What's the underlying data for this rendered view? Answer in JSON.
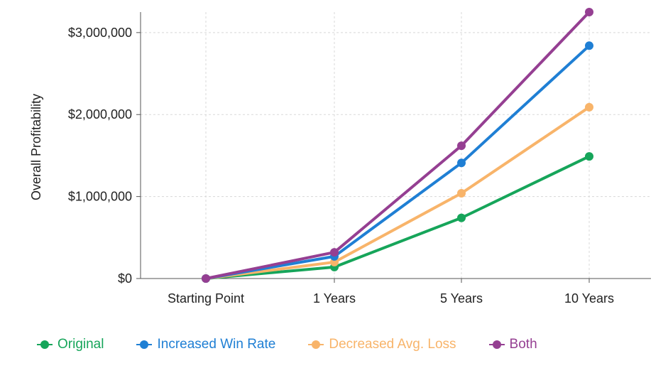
{
  "chart_data": {
    "type": "line",
    "categories": [
      "Starting Point",
      "1 Years",
      "5 Years",
      "10 Years"
    ],
    "ylabel": "Overall Profitability",
    "xlabel": "",
    "ylim": [
      0,
      3250000
    ],
    "yticks": [
      0,
      1000000,
      2000000,
      3000000
    ],
    "ytick_labels": [
      "$0",
      "$1,000,000",
      "$2,000,000",
      "$3,000,000"
    ],
    "grid": true,
    "legend_position": "bottom-left",
    "series": [
      {
        "name": "Original",
        "color": "#16a55a",
        "values": [
          0,
          140000,
          740000,
          1490000
        ]
      },
      {
        "name": "Increased Win Rate",
        "color": "#1f7fd4",
        "values": [
          0,
          270000,
          1410000,
          2840000
        ]
      },
      {
        "name": "Decreased Avg. Loss",
        "color": "#f8b46a",
        "values": [
          0,
          200000,
          1040000,
          2090000
        ]
      },
      {
        "name": "Both",
        "color": "#953f92",
        "values": [
          0,
          320000,
          1620000,
          3250000
        ]
      }
    ]
  }
}
